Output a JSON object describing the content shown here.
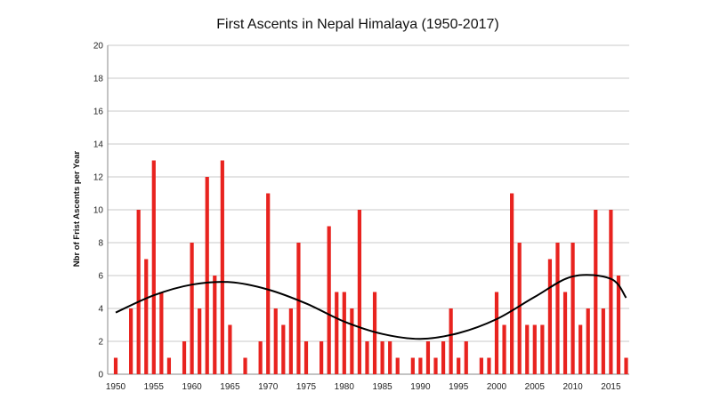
{
  "chart_data": {
    "type": "bar",
    "title": "First Ascents in Nepal Himalaya (1950-2017)",
    "xlabel": "",
    "ylabel": "Nbr of Frist Ascents per Year",
    "ylim": [
      0,
      20
    ],
    "yticks": [
      0,
      2,
      4,
      6,
      8,
      10,
      12,
      14,
      16,
      18,
      20
    ],
    "xlim": [
      1950,
      2017
    ],
    "xticks": [
      1950,
      1955,
      1960,
      1965,
      1970,
      1975,
      1980,
      1985,
      1990,
      1995,
      2000,
      2005,
      2010,
      2015
    ],
    "grid": true,
    "bar_color": "#e8231f",
    "trend_color": "#000000",
    "x": [
      1950,
      1951,
      1952,
      1953,
      1954,
      1955,
      1956,
      1957,
      1958,
      1959,
      1960,
      1961,
      1962,
      1963,
      1964,
      1965,
      1966,
      1967,
      1968,
      1969,
      1970,
      1971,
      1972,
      1973,
      1974,
      1975,
      1976,
      1977,
      1978,
      1979,
      1980,
      1981,
      1982,
      1983,
      1984,
      1985,
      1986,
      1987,
      1988,
      1989,
      1990,
      1991,
      1992,
      1993,
      1994,
      1995,
      1996,
      1997,
      1998,
      1999,
      2000,
      2001,
      2002,
      2003,
      2004,
      2005,
      2006,
      2007,
      2008,
      2009,
      2010,
      2011,
      2012,
      2013,
      2014,
      2015,
      2016,
      2017
    ],
    "values": [
      1,
      0,
      4,
      10,
      7,
      13,
      5,
      1,
      0,
      2,
      8,
      4,
      12,
      6,
      13,
      3,
      0,
      1,
      0,
      2,
      11,
      4,
      3,
      4,
      8,
      2,
      0,
      2,
      9,
      5,
      5,
      4,
      10,
      2,
      5,
      2,
      2,
      1,
      0,
      1,
      1,
      2,
      1,
      2,
      4,
      1,
      2,
      0,
      1,
      1,
      5,
      3,
      11,
      8,
      3,
      3,
      3,
      7,
      8,
      5,
      8,
      3,
      4,
      10,
      4,
      10,
      6,
      1
    ],
    "trend": {
      "type": "polynomial",
      "x": [
        1950,
        1955,
        1960,
        1965,
        1970,
        1975,
        1980,
        1985,
        1990,
        1995,
        2000,
        2005,
        2010,
        2015,
        2017
      ],
      "values": [
        3.75,
        4.8,
        5.45,
        5.6,
        5.15,
        4.3,
        3.2,
        2.45,
        2.15,
        2.5,
        3.35,
        4.7,
        5.95,
        5.8,
        4.65
      ]
    }
  }
}
